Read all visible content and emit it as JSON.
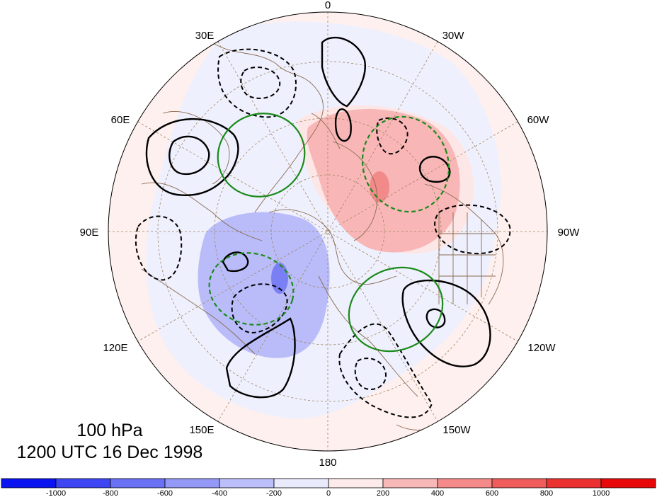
{
  "title": {
    "level": "100 hPa",
    "time": "1200 UTC 16 Dec 1998"
  },
  "longitude_labels": {
    "lon_0": "0",
    "lon_30w": "30W",
    "lon_60w": "60W",
    "lon_90w": "90W",
    "lon_120w": "120W",
    "lon_150w": "150W",
    "lon_180": "180",
    "lon_150e": "150E",
    "lon_120e": "120E",
    "lon_90e": "90E",
    "lon_60e": "60E",
    "lon_30e": "30E"
  },
  "colorbar": {
    "labels": [
      "-1000",
      "-800",
      "-600",
      "-400",
      "-200",
      "0",
      "200",
      "400",
      "600",
      "800",
      "1000"
    ],
    "colors": [
      "#0a14f0",
      "#3d46f2",
      "#6a71f4",
      "#9499f7",
      "#bcbffa",
      "#e9ebfd",
      "#fdeaea",
      "#f8b8b8",
      "#f48a8a",
      "#f05c5c",
      "#ec3131",
      "#e8080a"
    ]
  }
}
